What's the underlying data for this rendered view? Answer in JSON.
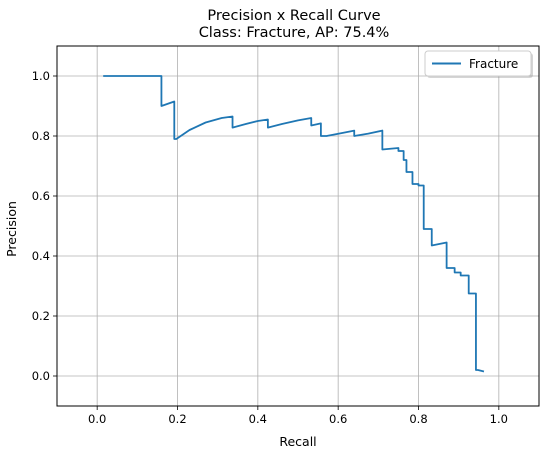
{
  "chart_data": {
    "type": "line",
    "title": "Precision x Recall Curve",
    "subtitle": "Class: Fracture, AP: 75.4%",
    "xlabel": "Recall",
    "ylabel": "Precision",
    "xlim": [
      -0.1,
      1.1
    ],
    "ylim": [
      -0.1,
      1.1
    ],
    "xticks": [
      "0.0",
      "0.2",
      "0.4",
      "0.6",
      "0.8",
      "1.0"
    ],
    "yticks": [
      "0.0",
      "0.2",
      "0.4",
      "0.6",
      "0.8",
      "1.0"
    ],
    "grid": true,
    "legend": {
      "position": "top-right"
    },
    "series": [
      {
        "name": "Fracture",
        "color": "#1f77b4",
        "x": [
          0.015,
          0.16,
          0.16,
          0.192,
          0.192,
          0.197,
          0.197,
          0.23,
          0.27,
          0.31,
          0.337,
          0.337,
          0.37,
          0.4,
          0.425,
          0.425,
          0.46,
          0.5,
          0.533,
          0.533,
          0.557,
          0.557,
          0.571,
          0.571,
          0.61,
          0.64,
          0.64,
          0.675,
          0.71,
          0.71,
          0.75,
          0.75,
          0.763,
          0.763,
          0.77,
          0.77,
          0.785,
          0.785,
          0.8,
          0.8,
          0.813,
          0.813,
          0.817,
          0.817,
          0.833,
          0.833,
          0.87,
          0.87,
          0.877,
          0.877,
          0.89,
          0.89,
          0.905,
          0.905,
          0.925,
          0.925,
          0.943,
          0.943,
          0.948,
          0.948,
          0.963
        ],
        "y": [
          1.0,
          1.0,
          0.9,
          0.915,
          0.79,
          0.79,
          0.79,
          0.82,
          0.845,
          0.86,
          0.865,
          0.828,
          0.84,
          0.85,
          0.855,
          0.828,
          0.84,
          0.852,
          0.86,
          0.835,
          0.842,
          0.8,
          0.8,
          0.8,
          0.81,
          0.818,
          0.8,
          0.808,
          0.818,
          0.755,
          0.76,
          0.75,
          0.75,
          0.72,
          0.72,
          0.68,
          0.68,
          0.64,
          0.64,
          0.635,
          0.635,
          0.49,
          0.49,
          0.49,
          0.49,
          0.435,
          0.445,
          0.36,
          0.36,
          0.36,
          0.36,
          0.345,
          0.345,
          0.335,
          0.335,
          0.275,
          0.275,
          0.02,
          0.02,
          0.02,
          0.015
        ]
      }
    ]
  }
}
